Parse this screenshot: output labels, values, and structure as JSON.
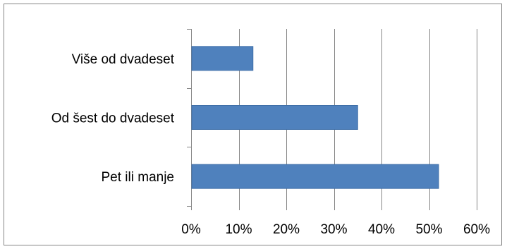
{
  "chart_data": {
    "type": "bar",
    "orientation": "horizontal",
    "categories": [
      "Više od dvadeset",
      "Od šest do dvadeset",
      "Pet ili manje"
    ],
    "values": [
      13,
      35,
      52
    ],
    "value_unit": "%",
    "xlim": [
      0,
      60
    ],
    "x_ticks": [
      0,
      10,
      20,
      30,
      40,
      50,
      60
    ],
    "x_tick_labels": [
      "0%",
      "10%",
      "20%",
      "30%",
      "40%",
      "50%",
      "60%"
    ],
    "gridlines": "vertical",
    "legend": "none",
    "title": "",
    "xlabel": "",
    "ylabel": "",
    "colors": {
      "bar": "#4F81BD",
      "bar_edge": "#3F6FA8",
      "grid": "#868686",
      "axis": "#868686",
      "text": "#000000"
    }
  }
}
